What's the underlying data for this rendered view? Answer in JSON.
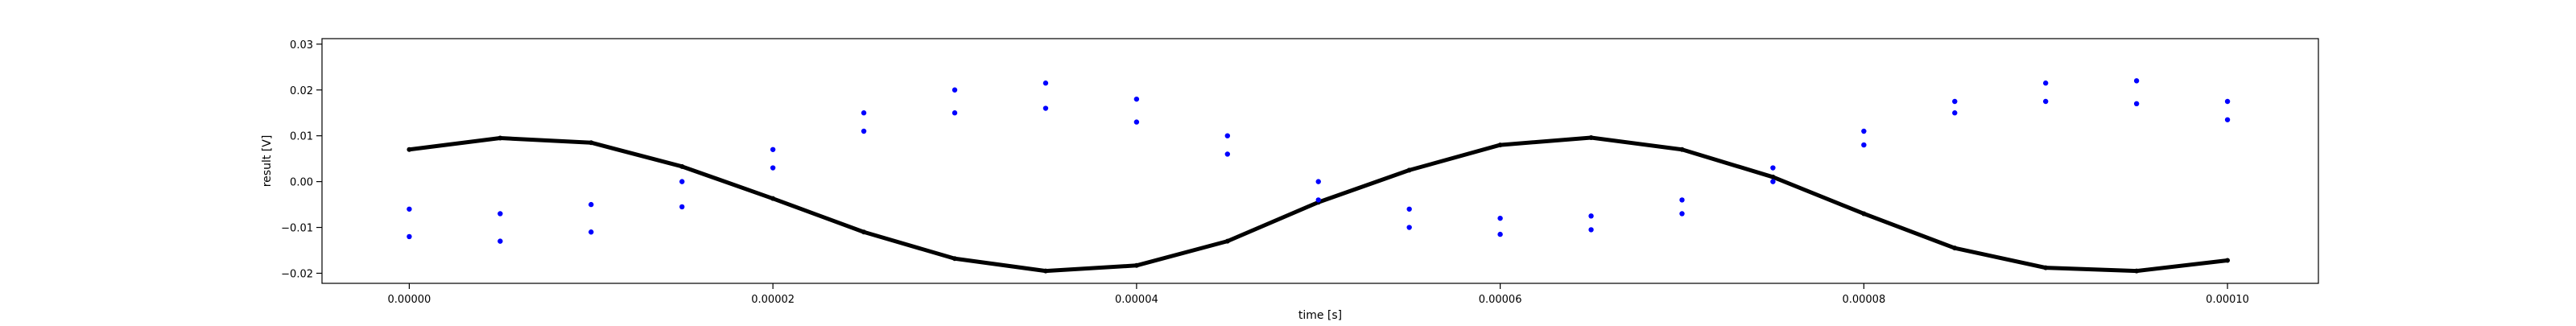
{
  "chart_data": {
    "type": "scatter",
    "title": "",
    "xlabel": "time [s]",
    "ylabel": "result [V]",
    "xlim": [
      -4.8e-06,
      0.000105
    ],
    "ylim": [
      -0.0222,
      0.0312
    ],
    "x_ticks": [
      0,
      2e-05,
      4e-05,
      6e-05,
      8e-05,
      0.0001
    ],
    "x_tick_labels": [
      "0.00000",
      "0.00002",
      "0.00004",
      "0.00006",
      "0.00008",
      "0.00010"
    ],
    "y_ticks": [
      -0.02,
      -0.01,
      0.0,
      0.01,
      0.02,
      0.03
    ],
    "y_tick_labels": [
      "−0.02",
      "−0.01",
      "0.00",
      "0.01",
      "0.02",
      "0.03"
    ],
    "grid": false,
    "legend": "none",
    "series": [
      {
        "color": "#000000",
        "marker": "dense-dots",
        "x": [
          0,
          5e-06,
          1e-05,
          1.5e-05,
          2e-05,
          2.5e-05,
          3e-05,
          3.5e-05,
          4e-05,
          4.5e-05,
          5e-05,
          5.5e-05,
          6e-05,
          6.5e-05,
          7e-05,
          7.5e-05,
          8e-05,
          8.5e-05,
          9e-05,
          9.5e-05,
          0.0001
        ],
        "y": [
          0.007,
          0.0095,
          0.0085,
          0.0033,
          -0.0037,
          -0.011,
          -0.0168,
          -0.0195,
          -0.0183,
          -0.013,
          -0.0045,
          0.0025,
          0.008,
          0.0096,
          0.007,
          0.001,
          -0.007,
          -0.0145,
          -0.0188,
          -0.0195,
          -0.0172
        ]
      },
      {
        "color": "#0000ff",
        "marker": "dot",
        "x": [
          0,
          5e-06,
          1e-05,
          1.5e-05,
          2e-05,
          2.5e-05,
          3e-05,
          3.5e-05,
          4e-05,
          4.5e-05,
          5e-05,
          5.5e-05,
          6e-05,
          6.5e-05,
          7e-05,
          7.5e-05,
          8e-05,
          8.5e-05,
          9e-05,
          9.5e-05,
          0.0001
        ],
        "y": [
          -0.006,
          -0.007,
          -0.005,
          0.0,
          0.007,
          0.015,
          0.02,
          0.0215,
          0.018,
          0.01,
          0.0,
          -0.006,
          -0.008,
          -0.0075,
          -0.004,
          0.003,
          0.011,
          0.0175,
          0.0215,
          0.022,
          0.0175
        ]
      },
      {
        "color": "#0000ff",
        "marker": "dot",
        "x": [
          0,
          5e-06,
          1e-05,
          1.5e-05,
          2e-05,
          2.5e-05,
          3e-05,
          3.5e-05,
          4e-05,
          4.5e-05,
          5e-05,
          5.5e-05,
          6e-05,
          6.5e-05,
          7e-05,
          7.5e-05,
          8e-05,
          8.5e-05,
          9e-05,
          9.5e-05,
          0.0001
        ],
        "y": [
          -0.012,
          -0.013,
          -0.011,
          -0.0055,
          0.003,
          0.011,
          0.015,
          0.016,
          0.013,
          0.006,
          -0.004,
          -0.01,
          -0.0115,
          -0.0105,
          -0.007,
          0.0,
          0.008,
          0.015,
          0.0175,
          0.017,
          0.0135
        ]
      }
    ]
  }
}
